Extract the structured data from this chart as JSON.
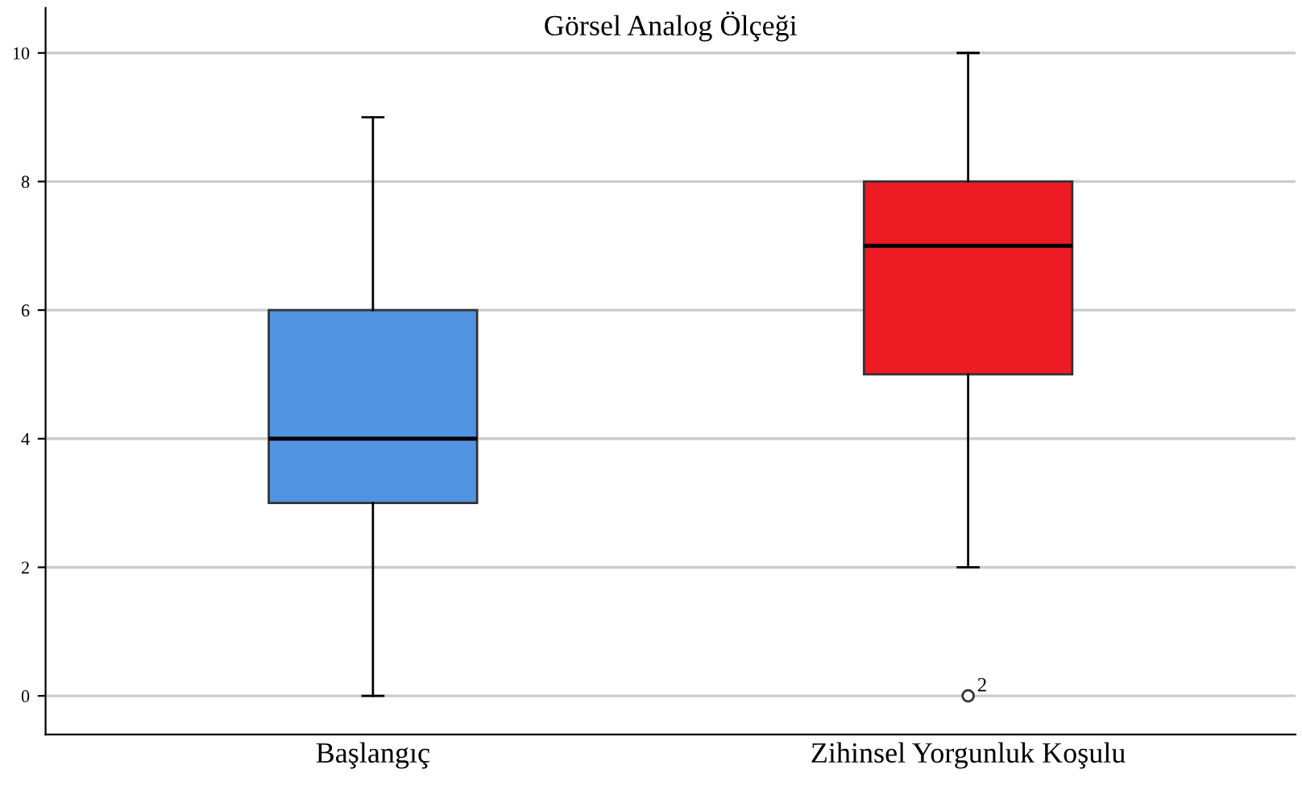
{
  "chart_data": {
    "type": "box",
    "title": "Görsel Analog Ölçeği",
    "categories": [
      "Başlangıç",
      "Zihinsel Yorgunluk Koşulu"
    ],
    "boxes": [
      {
        "low": 0,
        "q1": 3,
        "median": 4,
        "q3": 6,
        "high": 9
      },
      {
        "low": 2,
        "q1": 5,
        "median": 7,
        "q3": 8,
        "high": 10,
        "outliers": [
          0
        ]
      }
    ],
    "colors": [
      "#5294e2",
      "#ed1c24"
    ],
    "annotations": [
      "2"
    ],
    "ylim": [
      -0.6,
      10.7
    ],
    "yticks": [
      0,
      2,
      4,
      6,
      8,
      10
    ],
    "grid": "y"
  }
}
